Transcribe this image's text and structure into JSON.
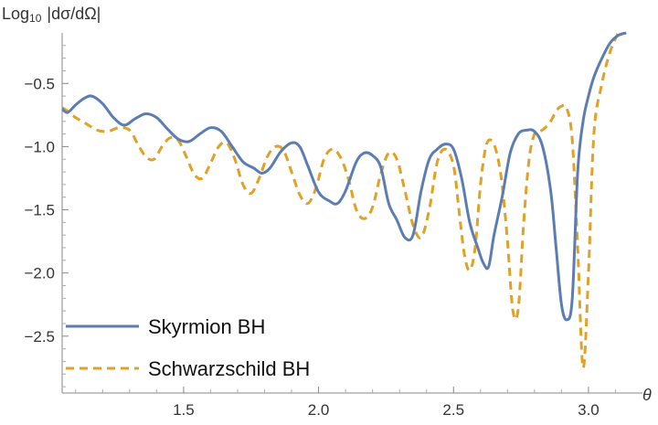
{
  "chart_data": {
    "type": "line",
    "title": "",
    "ylabel_main": "Log",
    "ylabel_sub": "10",
    "ylabel_rest": "|dσ/dΩ|",
    "xlabel": "θ",
    "xlim": [
      1.05,
      3.2
    ],
    "ylim": [
      -2.95,
      -0.1
    ],
    "xticks": [
      1.5,
      2.0,
      2.5,
      3.0
    ],
    "xtick_labels": [
      "1.5",
      "2.0",
      "2.5",
      "3.0"
    ],
    "yticks": [
      -0.5,
      -1.0,
      -1.5,
      -2.0,
      -2.5
    ],
    "ytick_labels": [
      "−0.5",
      "−1.0",
      "−1.5",
      "−2.0",
      "−2.5"
    ],
    "grid": false,
    "legend_position": "bottom-left",
    "series": [
      {
        "name": "Skyrmion BH",
        "color": "#5b7db3",
        "style": "solid",
        "x": [
          1.05,
          1.07,
          1.1,
          1.13,
          1.16,
          1.2,
          1.24,
          1.28,
          1.32,
          1.36,
          1.4,
          1.44,
          1.48,
          1.52,
          1.56,
          1.6,
          1.64,
          1.68,
          1.72,
          1.76,
          1.79,
          1.82,
          1.86,
          1.9,
          1.93,
          1.96,
          2.0,
          2.04,
          2.07,
          2.1,
          2.14,
          2.17,
          2.2,
          2.23,
          2.26,
          2.29,
          2.32,
          2.35,
          2.38,
          2.41,
          2.44,
          2.47,
          2.5,
          2.53,
          2.56,
          2.59,
          2.61,
          2.63,
          2.65,
          2.68,
          2.71,
          2.74,
          2.77,
          2.8,
          2.83,
          2.86,
          2.88,
          2.9,
          2.92,
          2.94,
          2.96,
          2.98,
          3.0,
          3.02,
          3.05,
          3.08,
          3.11,
          3.14
        ],
        "y": [
          -0.7,
          -0.73,
          -0.67,
          -0.62,
          -0.6,
          -0.66,
          -0.77,
          -0.83,
          -0.78,
          -0.74,
          -0.77,
          -0.86,
          -0.94,
          -0.96,
          -0.9,
          -0.85,
          -0.88,
          -1.0,
          -1.12,
          -1.17,
          -1.21,
          -1.17,
          -1.04,
          -0.97,
          -1.0,
          -1.15,
          -1.36,
          -1.43,
          -1.45,
          -1.35,
          -1.12,
          -1.05,
          -1.07,
          -1.16,
          -1.45,
          -1.58,
          -1.72,
          -1.7,
          -1.35,
          -1.1,
          -1.02,
          -0.98,
          -1.02,
          -1.25,
          -1.6,
          -1.8,
          -1.92,
          -1.95,
          -1.7,
          -1.4,
          -1.05,
          -0.9,
          -0.87,
          -0.88,
          -1.0,
          -1.35,
          -1.8,
          -2.25,
          -2.37,
          -2.2,
          -1.2,
          -0.8,
          -0.6,
          -0.45,
          -0.3,
          -0.18,
          -0.12,
          -0.1
        ]
      },
      {
        "name": "Schwarzschild BH",
        "color": "#e0a127",
        "style": "dashed",
        "x": [
          1.05,
          1.07,
          1.1,
          1.14,
          1.18,
          1.22,
          1.26,
          1.3,
          1.33,
          1.36,
          1.39,
          1.42,
          1.45,
          1.48,
          1.51,
          1.54,
          1.57,
          1.6,
          1.63,
          1.66,
          1.69,
          1.72,
          1.75,
          1.78,
          1.81,
          1.84,
          1.87,
          1.9,
          1.93,
          1.96,
          1.99,
          2.02,
          2.05,
          2.08,
          2.11,
          2.14,
          2.17,
          2.2,
          2.23,
          2.26,
          2.29,
          2.32,
          2.35,
          2.38,
          2.41,
          2.44,
          2.47,
          2.5,
          2.52,
          2.54,
          2.56,
          2.58,
          2.6,
          2.62,
          2.64,
          2.66,
          2.68,
          2.7,
          2.72,
          2.74,
          2.76,
          2.78,
          2.8,
          2.82,
          2.84,
          2.86,
          2.88,
          2.9,
          2.92,
          2.94,
          2.96,
          2.98,
          3.0,
          3.02,
          3.05,
          3.08,
          3.11
        ],
        "y": [
          -0.69,
          -0.72,
          -0.77,
          -0.82,
          -0.87,
          -0.88,
          -0.85,
          -0.87,
          -0.98,
          -1.08,
          -1.1,
          -1.0,
          -0.93,
          -0.95,
          -1.08,
          -1.22,
          -1.25,
          -1.13,
          -1.0,
          -0.97,
          -1.1,
          -1.3,
          -1.37,
          -1.25,
          -1.08,
          -1.0,
          -1.03,
          -1.2,
          -1.38,
          -1.45,
          -1.33,
          -1.1,
          -1.02,
          -1.08,
          -1.25,
          -1.5,
          -1.57,
          -1.48,
          -1.22,
          -1.05,
          -1.1,
          -1.35,
          -1.62,
          -1.72,
          -1.5,
          -1.12,
          -1.02,
          -1.15,
          -1.5,
          -1.85,
          -1.98,
          -1.8,
          -1.3,
          -1.0,
          -0.95,
          -1.05,
          -1.3,
          -1.75,
          -2.3,
          -2.28,
          -1.6,
          -1.1,
          -0.9,
          -0.88,
          -0.85,
          -0.8,
          -0.72,
          -0.68,
          -0.7,
          -0.95,
          -1.8,
          -2.75,
          -2.0,
          -0.9,
          -0.5,
          -0.25,
          -0.1
        ]
      }
    ]
  }
}
